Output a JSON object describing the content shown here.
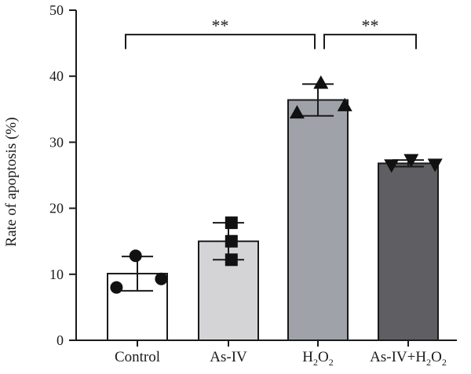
{
  "chart_data": {
    "type": "bar",
    "ylabel": "Rate of apoptosis (%)",
    "ylim": [
      0,
      50
    ],
    "yticks": [
      0,
      10,
      20,
      30,
      40,
      50
    ],
    "categories": [
      {
        "label": "Control",
        "sub": ""
      },
      {
        "label": "As-IV",
        "sub": ""
      },
      {
        "label": "H",
        "sub": "2",
        "tail": "O",
        "sub2": "2"
      },
      {
        "label": "As-IV+H",
        "sub": "2",
        "tail": "O",
        "sub2": "2"
      }
    ],
    "bars": [
      {
        "mean": 10.1,
        "sd": 2.6,
        "color": "#ffffff",
        "marker": "circle",
        "points": [
          {
            "dx": -0.35,
            "y": 8.0
          },
          {
            "dx": -0.03,
            "y": 12.8
          },
          {
            "dx": 0.4,
            "y": 9.3
          }
        ]
      },
      {
        "mean": 15.0,
        "sd": 2.8,
        "color": "#d4d4d6",
        "marker": "square",
        "points": [
          {
            "dx": 0.05,
            "y": 17.8
          },
          {
            "dx": 0.05,
            "y": 15.0
          },
          {
            "dx": 0.05,
            "y": 12.2
          }
        ]
      },
      {
        "mean": 36.4,
        "sd": 2.4,
        "color": "#a0a2aa",
        "marker": "triangle-up",
        "points": [
          {
            "dx": -0.35,
            "y": 34.5
          },
          {
            "dx": 0.05,
            "y": 39.0
          },
          {
            "dx": 0.45,
            "y": 35.6
          }
        ]
      },
      {
        "mean": 26.8,
        "sd": 0.5,
        "color": "#5e5e63",
        "marker": "triangle-down",
        "points": [
          {
            "dx": -0.28,
            "y": 26.5
          },
          {
            "dx": 0.05,
            "y": 27.3
          },
          {
            "dx": 0.45,
            "y": 26.6
          }
        ]
      }
    ],
    "significance": [
      {
        "from": 0,
        "to": 2,
        "label": "**",
        "y": 46.3,
        "drop": 2.2
      },
      {
        "from": 2,
        "to": 3,
        "label": "**",
        "y": 46.3,
        "drop": 2.2
      }
    ],
    "marker_color": "#111111",
    "axis_color": "#1a1a1a"
  }
}
